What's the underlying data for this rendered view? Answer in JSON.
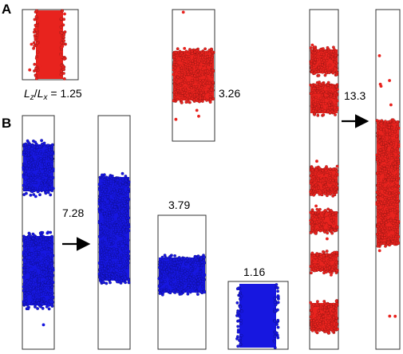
{
  "panels": {
    "a": {
      "letter": "A"
    },
    "b": {
      "letter": "B"
    }
  },
  "ratio_label": {
    "lz": "L",
    "lz_sub": "z",
    "slash": "/",
    "lx": "L",
    "lx_sub": "x",
    "eq": " = 1.25"
  },
  "labels": {
    "a_326": "3.26",
    "a_133": "13.3",
    "b_728": "7.28",
    "b_379": "3.79",
    "b_116": "1.16"
  },
  "colors": {
    "particle_red": "#e8231e",
    "particle_blue": "#1717e0",
    "arrow": "#000000"
  },
  "icons": [
    "right-arrow-icon"
  ]
}
